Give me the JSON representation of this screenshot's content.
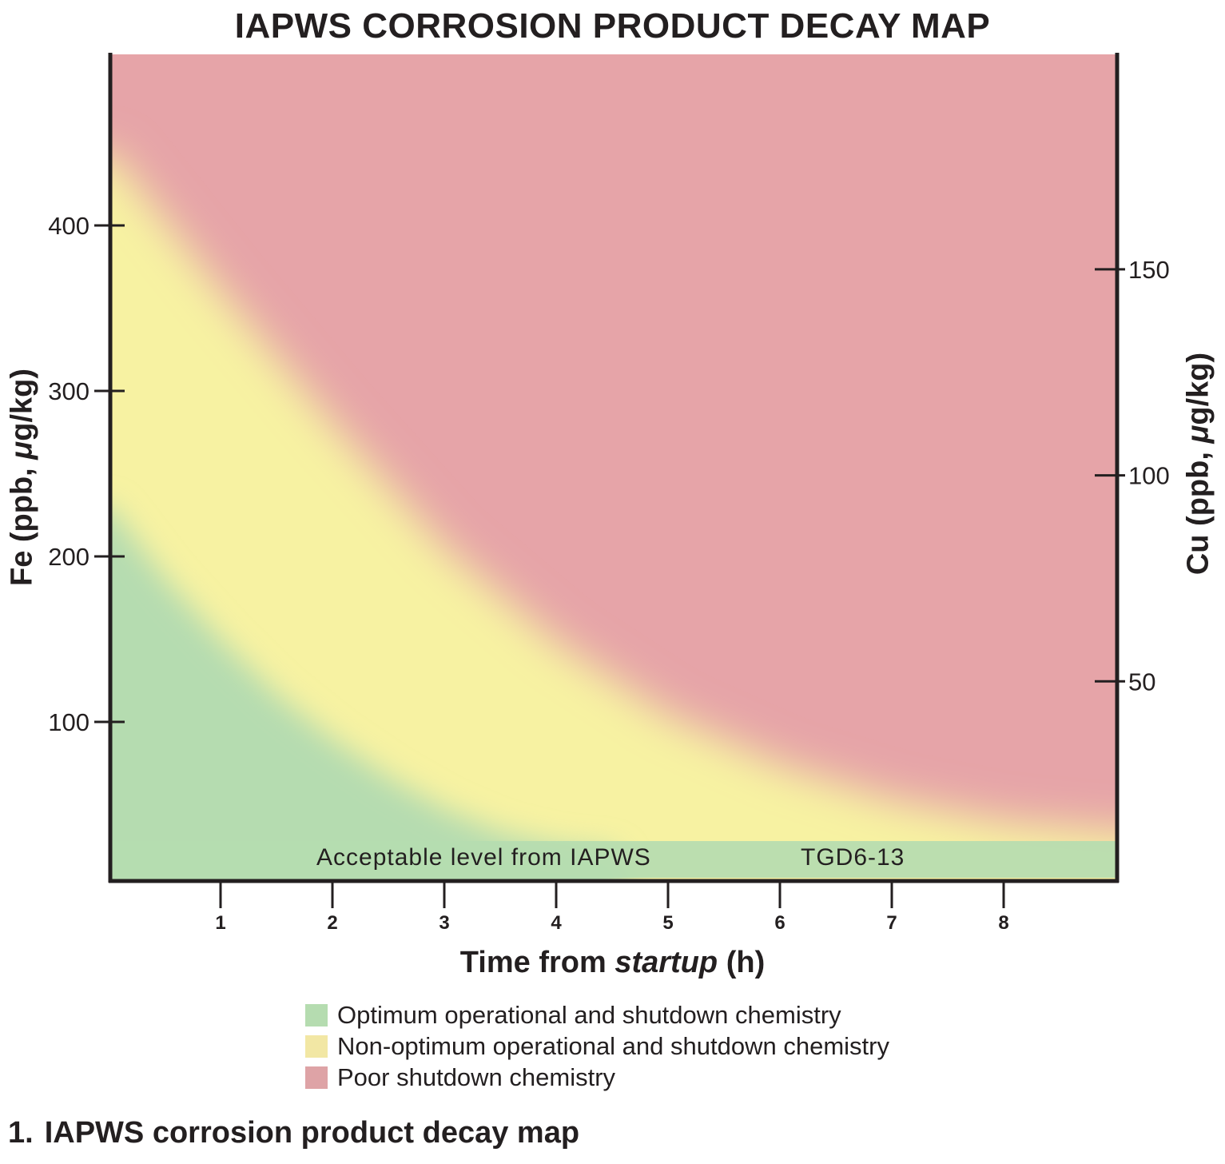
{
  "chart_data": {
    "type": "area",
    "title": "IAPWS CORROSION PRODUCT DECAY MAP",
    "xlabel": {
      "prefix": "Time from ",
      "emph": "startup",
      "suffix": " (h)"
    },
    "ylabel_left": {
      "prefix": "Fe (ppb, ",
      "emph": "μ",
      "suffix": "g/kg)"
    },
    "ylabel_right": {
      "prefix": "Cu (ppb, ",
      "emph": "μ",
      "suffix": "g/kg)"
    },
    "xlim": [
      0,
      9
    ],
    "ylim_left": [
      0,
      500
    ],
    "ylim_right": [
      0,
      200
    ],
    "x_ticks": [
      1,
      2,
      3,
      4,
      5,
      6,
      7,
      8
    ],
    "y_ticks_left": [
      100,
      200,
      300,
      400
    ],
    "y_ticks_right": [
      50,
      100,
      150
    ],
    "zones": [
      {
        "name": "Optimum operational and shutdown chemistry",
        "color": "#b5dcb0"
      },
      {
        "name": "Non-optimum operational and shutdown chemistry",
        "color": "#f7f2a2"
      },
      {
        "name": "Poor shutdown chemistry",
        "color": "#e6a4a8"
      }
    ],
    "boundaries": [
      {
        "between": [
          "Optimum operational and shutdown chemistry",
          "Non-optimum operational and shutdown chemistry"
        ],
        "x": [
          0,
          0.5,
          1,
          1.5,
          2,
          2.5,
          3,
          3.5,
          4,
          4.5
        ],
        "y": [
          230,
          186,
          149,
          116,
          89,
          66,
          47,
          33,
          25,
          22
        ]
      },
      {
        "between": [
          "Non-optimum operational and shutdown chemistry",
          "Poor shutdown chemistry"
        ],
        "x": [
          0,
          1,
          2,
          3,
          4,
          5,
          6,
          7,
          8,
          9
        ],
        "y": [
          445,
          360,
          280,
          205,
          148,
          104,
          74,
          53,
          40,
          34
        ]
      }
    ],
    "acceptable_band": {
      "y_max": 28,
      "label_left": "Acceptable level from IAPWS",
      "label_right": "TGD6-13"
    },
    "grid": false,
    "legend_position": "bottom"
  },
  "legend": [
    {
      "label": "Optimum operational and shutdown chemistry",
      "color": "#b5dcb0"
    },
    {
      "label": "Non-optimum operational and shutdown chemistry",
      "color": "#f2e7a4"
    },
    {
      "label": "Poor shutdown chemistry",
      "color": "#dea3a6"
    }
  ],
  "caption": {
    "number": "1.",
    "text": "IAPWS corrosion product decay map"
  }
}
